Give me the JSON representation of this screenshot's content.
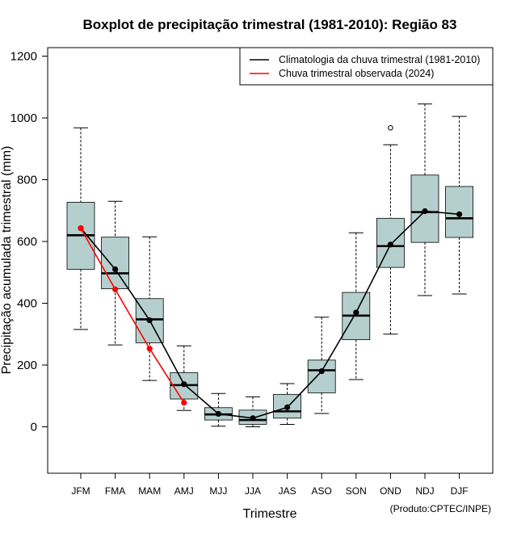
{
  "chart_data": {
    "type": "boxplot",
    "title": "Boxplot de precipitação trimestral (1981-2010): Região 83",
    "xlabel": "Trimestre",
    "ylabel": "Precipitação acumulada trimestral (mm)",
    "ylim": [
      -150,
      1225
    ],
    "yticks": [
      0,
      200,
      400,
      600,
      800,
      1000,
      1200
    ],
    "categories": [
      "JFM",
      "FMA",
      "MAM",
      "AMJ",
      "MJJ",
      "JJA",
      "JAS",
      "ASO",
      "SON",
      "OND",
      "NDJ",
      "DJF"
    ],
    "boxes": [
      {
        "whisker_low": 315,
        "q1": 510,
        "median": 620,
        "q3": 727,
        "whisker_high": 968,
        "outliers": []
      },
      {
        "whisker_low": 265,
        "q1": 447,
        "median": 497,
        "q3": 614,
        "whisker_high": 730,
        "outliers": []
      },
      {
        "whisker_low": 150,
        "q1": 272,
        "median": 348,
        "q3": 415,
        "whisker_high": 615,
        "outliers": []
      },
      {
        "whisker_low": 53,
        "q1": 90,
        "median": 135,
        "q3": 175,
        "whisker_high": 262,
        "outliers": []
      },
      {
        "whisker_low": 2,
        "q1": 22,
        "median": 40,
        "q3": 62,
        "whisker_high": 108,
        "outliers": []
      },
      {
        "whisker_low": 0,
        "q1": 8,
        "median": 22,
        "q3": 54,
        "whisker_high": 97,
        "outliers": []
      },
      {
        "whisker_low": 8,
        "q1": 28,
        "median": 50,
        "q3": 105,
        "whisker_high": 140,
        "outliers": []
      },
      {
        "whisker_low": 43,
        "q1": 110,
        "median": 183,
        "q3": 216,
        "whisker_high": 355,
        "outliers": []
      },
      {
        "whisker_low": 153,
        "q1": 282,
        "median": 360,
        "q3": 435,
        "whisker_high": 628,
        "outliers": []
      },
      {
        "whisker_low": 300,
        "q1": 516,
        "median": 585,
        "q3": 675,
        "whisker_high": 913,
        "outliers": [
          968
        ]
      },
      {
        "whisker_low": 425,
        "q1": 597,
        "median": 695,
        "q3": 815,
        "whisker_high": 1045,
        "outliers": []
      },
      {
        "whisker_low": 430,
        "q1": 613,
        "median": 675,
        "q3": 778,
        "whisker_high": 1005,
        "outliers": []
      }
    ],
    "series": [
      {
        "name": "Climatologia da chuva trimestral (1981-2010)",
        "color": "#000000",
        "values": [
          643,
          510,
          345,
          138,
          42,
          28,
          63,
          180,
          370,
          590,
          698,
          688
        ]
      },
      {
        "name": "Chuva trimestral observada (2024)",
        "color": "#ff0000",
        "values": [
          643,
          445,
          253,
          78
        ]
      }
    ],
    "box_fill": "#b5cfce",
    "legend_position": "top-right",
    "credit": "(Produto:CPTEC/INPE)"
  }
}
